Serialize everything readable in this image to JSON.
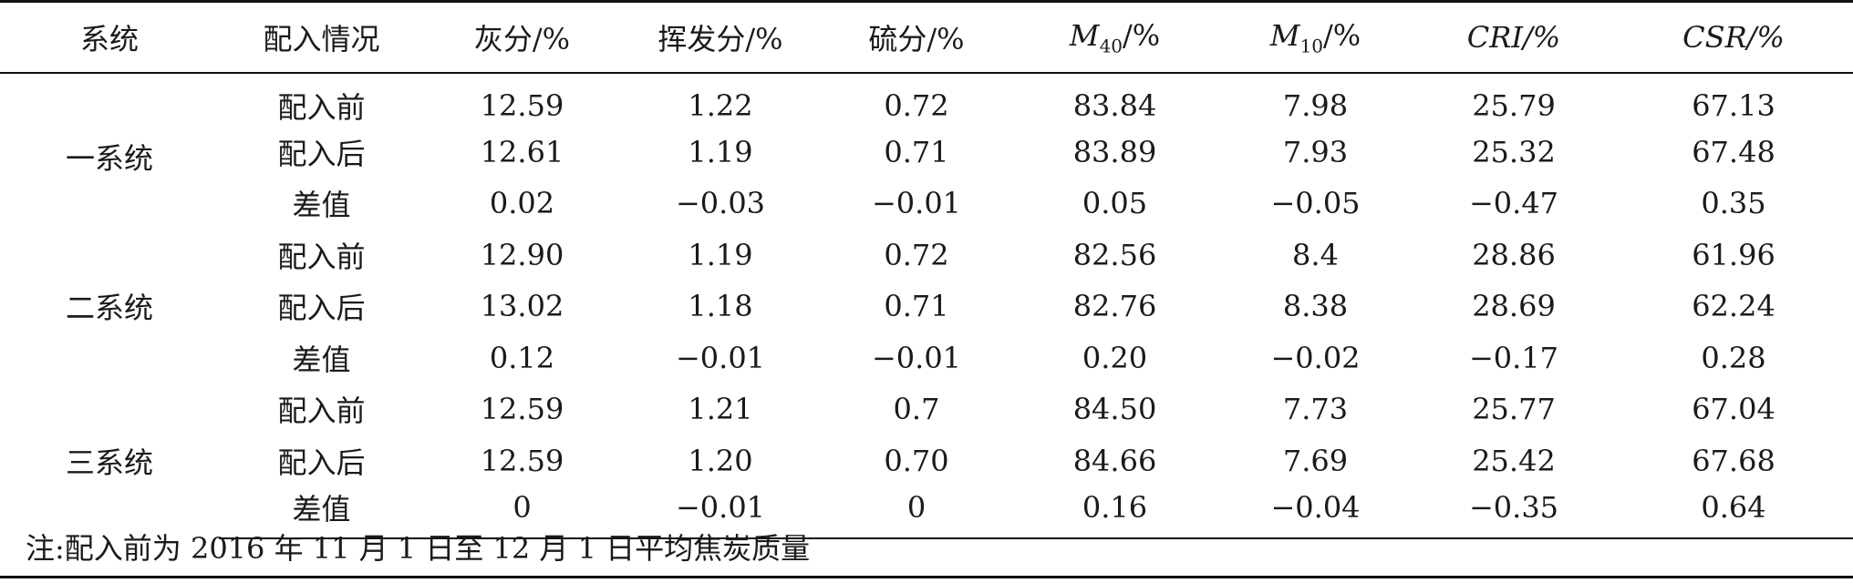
{
  "headers": {
    "system": "系统",
    "status": "配入情况",
    "ash": "灰分/%",
    "volatile": "挥发分/%",
    "sulfur": "硫分/%",
    "m40_letter": "M",
    "m40_sub": "40",
    "m40_unit": "/%",
    "m10_letter": "M",
    "m10_sub": "10",
    "m10_unit": "/%",
    "cri": "CRI/%",
    "csr": "CSR/%"
  },
  "groups": [
    {
      "system": "一系统",
      "rows": [
        {
          "status": "配入前",
          "ash": "12.59",
          "volatile": "1.22",
          "sulfur": "0.72",
          "m40": "83.84",
          "m10": "7.98",
          "cri": "25.79",
          "csr": "67.13"
        },
        {
          "status": "配入后",
          "ash": "12.61",
          "volatile": "1.19",
          "sulfur": "0.71",
          "m40": "83.89",
          "m10": "7.93",
          "cri": "25.32",
          "csr": "67.48"
        },
        {
          "status": "差值",
          "ash": "0.02",
          "volatile": "−0.03",
          "sulfur": "−0.01",
          "m40": "0.05",
          "m10": "−0.05",
          "cri": "−0.47",
          "csr": "0.35"
        }
      ]
    },
    {
      "system": "二系统",
      "rows": [
        {
          "status": "配入前",
          "ash": "12.90",
          "volatile": "1.19",
          "sulfur": "0.72",
          "m40": "82.56",
          "m10": "8.4",
          "cri": "28.86",
          "csr": "61.96"
        },
        {
          "status": "配入后",
          "ash": "13.02",
          "volatile": "1.18",
          "sulfur": "0.71",
          "m40": "82.76",
          "m10": "8.38",
          "cri": "28.69",
          "csr": "62.24"
        },
        {
          "status": "差值",
          "ash": "0.12",
          "volatile": "−0.01",
          "sulfur": "−0.01",
          "m40": "0.20",
          "m10": "−0.02",
          "cri": "−0.17",
          "csr": "0.28"
        }
      ]
    },
    {
      "system": "三系统",
      "rows": [
        {
          "status": "配入前",
          "ash": "12.59",
          "volatile": "1.21",
          "sulfur": "0.7",
          "m40": "84.50",
          "m10": "7.73",
          "cri": "25.77",
          "csr": "67.04"
        },
        {
          "status": "配入后",
          "ash": "12.59",
          "volatile": "1.20",
          "sulfur": "0.70",
          "m40": "84.66",
          "m10": "7.69",
          "cri": "25.42",
          "csr": "67.68"
        },
        {
          "status": "差值",
          "ash": "0",
          "volatile": "−0.01",
          "sulfur": "0",
          "m40": "0.16",
          "m10": "−0.04",
          "cri": "−0.35",
          "csr": "0.64"
        }
      ]
    }
  ],
  "note": "注:配入前为 2016 年 11 月 1 日至 12 月 1 日平均焦炭质量"
}
